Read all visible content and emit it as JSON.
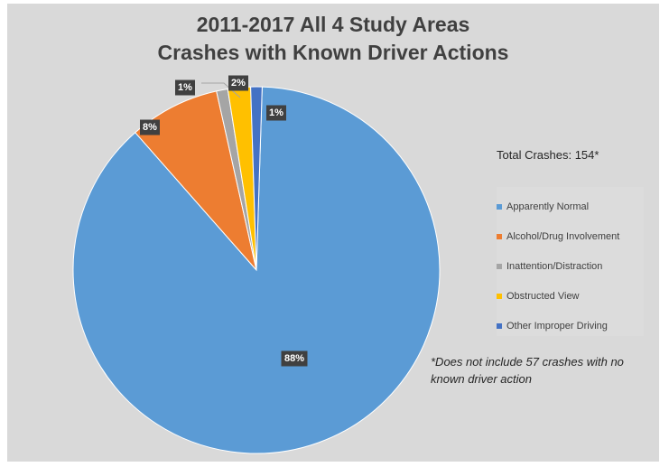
{
  "chart_data": {
    "type": "pie",
    "title": [
      "2011-2017 All 4 Study Areas",
      "Crashes with Known Driver Actions"
    ],
    "subtitle": "Total Crashes: 154*",
    "annotation": "*Does not include 57 crashes with no known driver action",
    "legend_position": "right",
    "slices": [
      {
        "label": "Apparently Normal",
        "value": 88,
        "display": "88%",
        "color": "#5b9bd5"
      },
      {
        "label": "Alcohol/Drug Involvement",
        "value": 8,
        "display": "8%",
        "color": "#ed7d31"
      },
      {
        "label": "Inattention/Distraction",
        "value": 1,
        "display": "1%",
        "color": "#a5a5a5"
      },
      {
        "label": "Obstructed View",
        "value": 2,
        "display": "2%",
        "color": "#ffc000"
      },
      {
        "label": "Other Improper Driving",
        "value": 1,
        "display": "1%",
        "color": "#4472c4"
      }
    ]
  }
}
